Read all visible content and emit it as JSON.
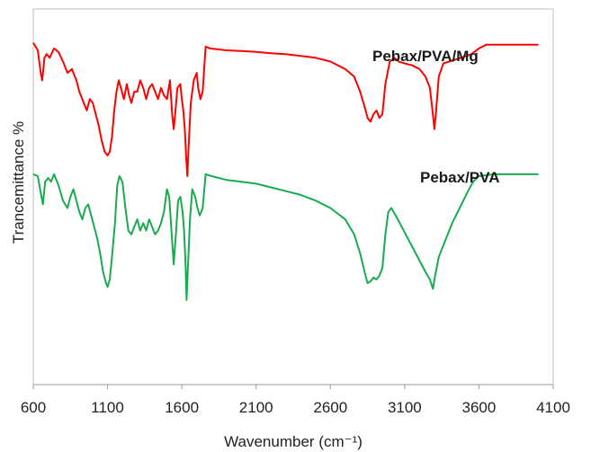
{
  "chart_data": {
    "type": "line",
    "xlabel": "Wavenumber (cm⁻¹)",
    "ylabel": "Trancemittance %",
    "xlim": [
      600,
      4100
    ],
    "xticks": [
      "600",
      "1100",
      "1600",
      "2100",
      "2600",
      "3100",
      "3600",
      "4100"
    ],
    "y_ticks_shown": false,
    "ylim": [
      0,
      100
    ],
    "grid": false,
    "legend": "none (series labelled directly above each curve)",
    "series": [
      {
        "name": "Pebax/PVA/Mg",
        "color": "#ff0000",
        "points": [
          [
            600,
            91
          ],
          [
            630,
            89
          ],
          [
            650,
            83
          ],
          [
            660,
            81
          ],
          [
            675,
            87
          ],
          [
            690,
            88
          ],
          [
            710,
            87
          ],
          [
            740,
            89.5
          ],
          [
            770,
            88.5
          ],
          [
            800,
            86
          ],
          [
            830,
            83
          ],
          [
            860,
            84
          ],
          [
            890,
            81
          ],
          [
            910,
            78
          ],
          [
            940,
            75
          ],
          [
            960,
            73
          ],
          [
            980,
            76
          ],
          [
            1000,
            75
          ],
          [
            1020,
            72
          ],
          [
            1040,
            69
          ],
          [
            1060,
            65
          ],
          [
            1080,
            62
          ],
          [
            1100,
            61
          ],
          [
            1115,
            62
          ],
          [
            1130,
            66
          ],
          [
            1145,
            73
          ],
          [
            1160,
            78
          ],
          [
            1175,
            81
          ],
          [
            1190,
            79
          ],
          [
            1210,
            76
          ],
          [
            1230,
            80
          ],
          [
            1245,
            77
          ],
          [
            1260,
            75
          ],
          [
            1280,
            78
          ],
          [
            1300,
            78
          ],
          [
            1320,
            81
          ],
          [
            1340,
            79
          ],
          [
            1360,
            76
          ],
          [
            1380,
            79
          ],
          [
            1400,
            80
          ],
          [
            1420,
            78
          ],
          [
            1440,
            76
          ],
          [
            1460,
            79
          ],
          [
            1480,
            77
          ],
          [
            1500,
            76
          ],
          [
            1520,
            81
          ],
          [
            1535,
            72
          ],
          [
            1545,
            68
          ],
          [
            1555,
            72
          ],
          [
            1570,
            79
          ],
          [
            1590,
            80
          ],
          [
            1600,
            76
          ],
          [
            1610,
            73
          ],
          [
            1620,
            68
          ],
          [
            1630,
            60
          ],
          [
            1637,
            55.5
          ],
          [
            1645,
            63
          ],
          [
            1660,
            75
          ],
          [
            1680,
            81
          ],
          [
            1700,
            83
          ],
          [
            1710,
            79
          ],
          [
            1725,
            76
          ],
          [
            1740,
            78
          ],
          [
            1760,
            90
          ],
          [
            1790,
            89.5
          ],
          [
            1900,
            89
          ],
          [
            2000,
            88.8
          ],
          [
            2100,
            88.6
          ],
          [
            2200,
            88.2
          ],
          [
            2300,
            88
          ],
          [
            2400,
            87.5
          ],
          [
            2500,
            87
          ],
          [
            2600,
            86
          ],
          [
            2700,
            84
          ],
          [
            2760,
            82
          ],
          [
            2800,
            78
          ],
          [
            2830,
            74
          ],
          [
            2850,
            71
          ],
          [
            2870,
            70
          ],
          [
            2890,
            72
          ],
          [
            2910,
            73
          ],
          [
            2930,
            71
          ],
          [
            2950,
            72
          ],
          [
            2970,
            80
          ],
          [
            3000,
            86
          ],
          [
            3030,
            87
          ],
          [
            3060,
            86
          ],
          [
            3100,
            85.5
          ],
          [
            3150,
            85
          ],
          [
            3200,
            84
          ],
          [
            3240,
            82
          ],
          [
            3270,
            79
          ],
          [
            3290,
            72
          ],
          [
            3300,
            68
          ],
          [
            3310,
            72
          ],
          [
            3330,
            82
          ],
          [
            3360,
            85.5
          ],
          [
            3400,
            86
          ],
          [
            3480,
            87
          ],
          [
            3550,
            88
          ],
          [
            3600,
            89.5
          ],
          [
            3650,
            90.5
          ],
          [
            3700,
            90.5
          ],
          [
            3800,
            90.5
          ],
          [
            3900,
            90.5
          ],
          [
            4000,
            90.5
          ]
        ]
      },
      {
        "name": "Pebax/PVA",
        "color": "#1aaa50",
        "points": [
          [
            600,
            56
          ],
          [
            630,
            55.5
          ],
          [
            650,
            51
          ],
          [
            665,
            48
          ],
          [
            680,
            54
          ],
          [
            700,
            55
          ],
          [
            720,
            54
          ],
          [
            740,
            56
          ],
          [
            770,
            53
          ],
          [
            800,
            49
          ],
          [
            830,
            47
          ],
          [
            850,
            50
          ],
          [
            870,
            52
          ],
          [
            890,
            49
          ],
          [
            910,
            46
          ],
          [
            930,
            44
          ],
          [
            950,
            47
          ],
          [
            970,
            48
          ],
          [
            990,
            45
          ],
          [
            1010,
            42
          ],
          [
            1030,
            39
          ],
          [
            1050,
            35
          ],
          [
            1070,
            30
          ],
          [
            1090,
            27
          ],
          [
            1100,
            26
          ],
          [
            1115,
            28
          ],
          [
            1130,
            34
          ],
          [
            1150,
            43
          ],
          [
            1165,
            53
          ],
          [
            1180,
            55.5
          ],
          [
            1200,
            54
          ],
          [
            1220,
            47
          ],
          [
            1240,
            41
          ],
          [
            1260,
            40
          ],
          [
            1280,
            42
          ],
          [
            1300,
            44
          ],
          [
            1320,
            41
          ],
          [
            1340,
            43
          ],
          [
            1360,
            41
          ],
          [
            1380,
            44
          ],
          [
            1400,
            42
          ],
          [
            1420,
            40
          ],
          [
            1440,
            41
          ],
          [
            1460,
            43
          ],
          [
            1480,
            46
          ],
          [
            1500,
            52
          ],
          [
            1515,
            50
          ],
          [
            1530,
            41
          ],
          [
            1545,
            32
          ],
          [
            1560,
            40
          ],
          [
            1575,
            49
          ],
          [
            1590,
            50
          ],
          [
            1605,
            46
          ],
          [
            1615,
            41
          ],
          [
            1625,
            32
          ],
          [
            1632,
            22.5
          ],
          [
            1640,
            30
          ],
          [
            1655,
            44
          ],
          [
            1670,
            52
          ],
          [
            1690,
            50
          ],
          [
            1705,
            47
          ],
          [
            1720,
            45
          ],
          [
            1740,
            47
          ],
          [
            1760,
            56
          ],
          [
            1800,
            55.5
          ],
          [
            1900,
            54.5
          ],
          [
            2000,
            54
          ],
          [
            2100,
            53.5
          ],
          [
            2200,
            52.5
          ],
          [
            2300,
            51.5
          ],
          [
            2400,
            50.5
          ],
          [
            2500,
            49
          ],
          [
            2600,
            47
          ],
          [
            2700,
            44
          ],
          [
            2760,
            40
          ],
          [
            2800,
            35
          ],
          [
            2830,
            30
          ],
          [
            2850,
            27
          ],
          [
            2870,
            27.5
          ],
          [
            2890,
            28.5
          ],
          [
            2910,
            28
          ],
          [
            2930,
            29
          ],
          [
            2950,
            31
          ],
          [
            2970,
            40
          ],
          [
            2990,
            46
          ],
          [
            3010,
            47
          ],
          [
            3040,
            45
          ],
          [
            3080,
            42
          ],
          [
            3120,
            39
          ],
          [
            3160,
            36
          ],
          [
            3200,
            33
          ],
          [
            3240,
            30
          ],
          [
            3270,
            28
          ],
          [
            3290,
            25.5
          ],
          [
            3305,
            29
          ],
          [
            3330,
            34
          ],
          [
            3370,
            38
          ],
          [
            3420,
            43
          ],
          [
            3470,
            47
          ],
          [
            3520,
            51
          ],
          [
            3560,
            54
          ],
          [
            3600,
            55.5
          ],
          [
            3700,
            56
          ],
          [
            3800,
            56
          ],
          [
            3900,
            56
          ],
          [
            4000,
            56
          ]
        ]
      }
    ]
  }
}
